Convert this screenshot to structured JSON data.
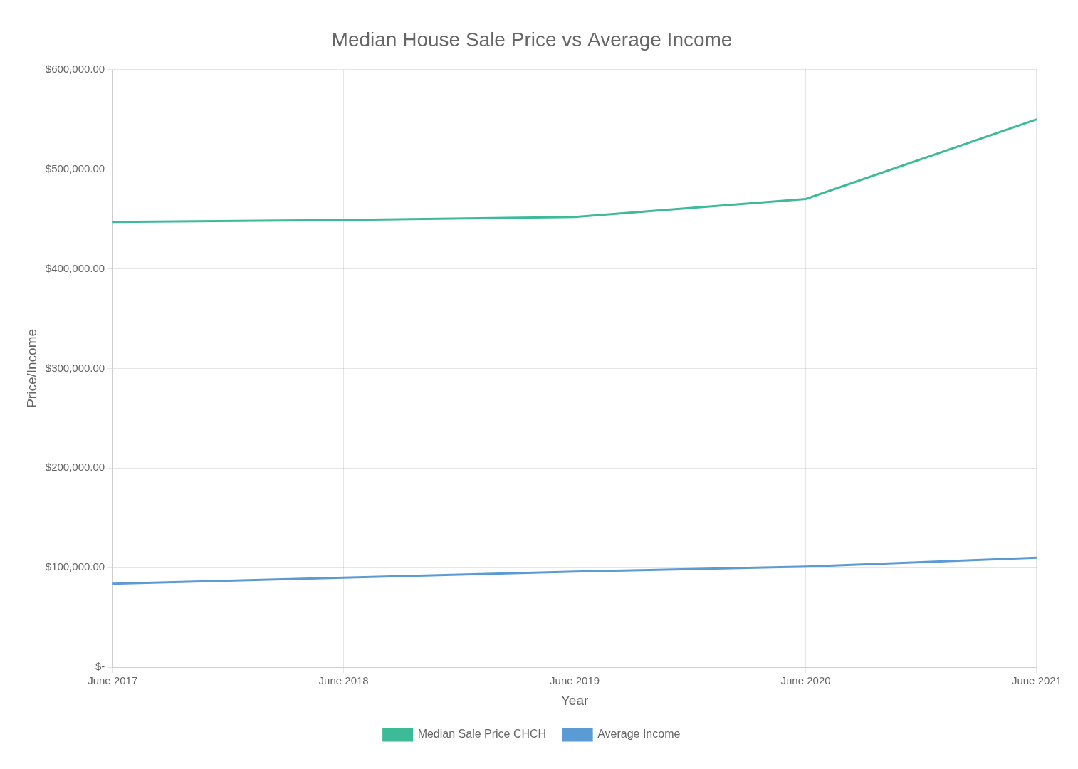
{
  "chart_data": {
    "type": "line",
    "title": "Median House Sale Price vs Average Income",
    "xlabel": "Year",
    "ylabel": "Price/Income",
    "categories": [
      "June 2017",
      "June 2018",
      "June 2019",
      "June 2020",
      "June 2021"
    ],
    "series": [
      {
        "name": "Median Sale Price CHCH",
        "color": "#3dba97",
        "values": [
          447000,
          449000,
          452000,
          470000,
          550000
        ]
      },
      {
        "name": "Average Income",
        "color": "#5b9bd5",
        "values": [
          84000,
          90000,
          96000,
          101000,
          110000
        ]
      }
    ],
    "ylim": [
      0,
      600000
    ],
    "yticks": [
      {
        "value": 0,
        "label": "$-"
      },
      {
        "value": 100000,
        "label": "$100,000.00"
      },
      {
        "value": 200000,
        "label": "$200,000.00"
      },
      {
        "value": 300000,
        "label": "$300,000.00"
      },
      {
        "value": 400000,
        "label": "$400,000.00"
      },
      {
        "value": 500000,
        "label": "$500,000.00"
      },
      {
        "value": 600000,
        "label": "$600,000.00"
      }
    ],
    "grid": true,
    "legend": "bottom"
  }
}
